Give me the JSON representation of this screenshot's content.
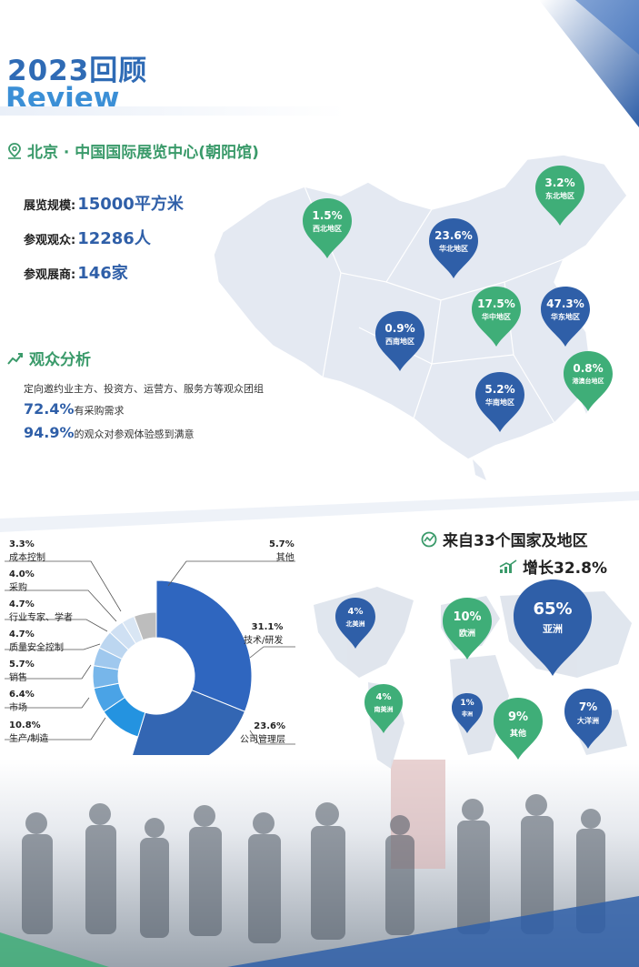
{
  "header": {
    "title_cn": "2023回顾",
    "title_en": "Review"
  },
  "venue": {
    "label": "北京 · 中国国际展览中心(朝阳馆)"
  },
  "stats": [
    {
      "label": "展览规模:",
      "value": "15000平方米"
    },
    {
      "label": "参观观众:",
      "value": "12286人"
    },
    {
      "label": "参观展商:",
      "value": "146家"
    }
  ],
  "audience": {
    "heading": "观众分析",
    "line1": "定向邀约业主方、投资方、运营方、服务方等观众团组",
    "stat1_value": "72.4%",
    "stat1_text": "有采购需求",
    "stat2_value": "94.9%",
    "stat2_text": "的观众对参观体验感到满意"
  },
  "china_regions": [
    {
      "pct": "1.5%",
      "name": "西北地区",
      "color": "#3fae78"
    },
    {
      "pct": "23.6%",
      "name": "华北地区",
      "color": "#2f5fa8"
    },
    {
      "pct": "3.2%",
      "name": "东北地区",
      "color": "#3fae78"
    },
    {
      "pct": "17.5%",
      "name": "华中地区",
      "color": "#3fae78"
    },
    {
      "pct": "47.3%",
      "name": "华东地区",
      "color": "#2f5fa8"
    },
    {
      "pct": "0.9%",
      "name": "西南地区",
      "color": "#2f5fa8"
    },
    {
      "pct": "5.2%",
      "name": "华南地区",
      "color": "#2f5fa8"
    },
    {
      "pct": "0.8%",
      "name": "港澳台地区",
      "color": "#3fae78"
    }
  ],
  "world": {
    "title": "来自33个国家及地区",
    "growth": "增长32.8%",
    "regions": [
      {
        "pct": "4%",
        "name": "北美洲",
        "color": "#2f5fa8"
      },
      {
        "pct": "10%",
        "name": "欧洲",
        "color": "#3fae78"
      },
      {
        "pct": "65%",
        "name": "亚洲",
        "color": "#2f5fa8"
      },
      {
        "pct": "4%",
        "name": "南美洲",
        "color": "#3fae78"
      },
      {
        "pct": "1%",
        "name": "非洲",
        "color": "#2f5fa8"
      },
      {
        "pct": "9%",
        "name": "其他",
        "color": "#3fae78"
      },
      {
        "pct": "7%",
        "name": "大洋洲",
        "color": "#2f5fa8"
      }
    ]
  },
  "chart_data": {
    "type": "pie",
    "title": "",
    "categories": [
      "公司管理层",
      "技术/研发",
      "其他",
      "成本控制",
      "采购",
      "行业专家、学者",
      "质量安全控制",
      "销售",
      "市场",
      "生产/制造"
    ],
    "values": [
      23.6,
      31.1,
      5.7,
      3.3,
      4.0,
      4.7,
      4.7,
      5.7,
      6.4,
      10.8
    ],
    "labels": [
      "23.6%",
      "31.1%",
      "5.7%",
      "3.3%",
      "4.0%",
      "4.7%",
      "4.7%",
      "5.7%",
      "6.4%",
      "10.8%"
    ],
    "colors": [
      "#3366b3",
      "#2f66bf",
      "#bdbdbd",
      "#d9e6f4",
      "#cfe0f3",
      "#bcd6f0",
      "#9fc8ee",
      "#77b6ea",
      "#4aa3e6",
      "#2493e0"
    ]
  }
}
